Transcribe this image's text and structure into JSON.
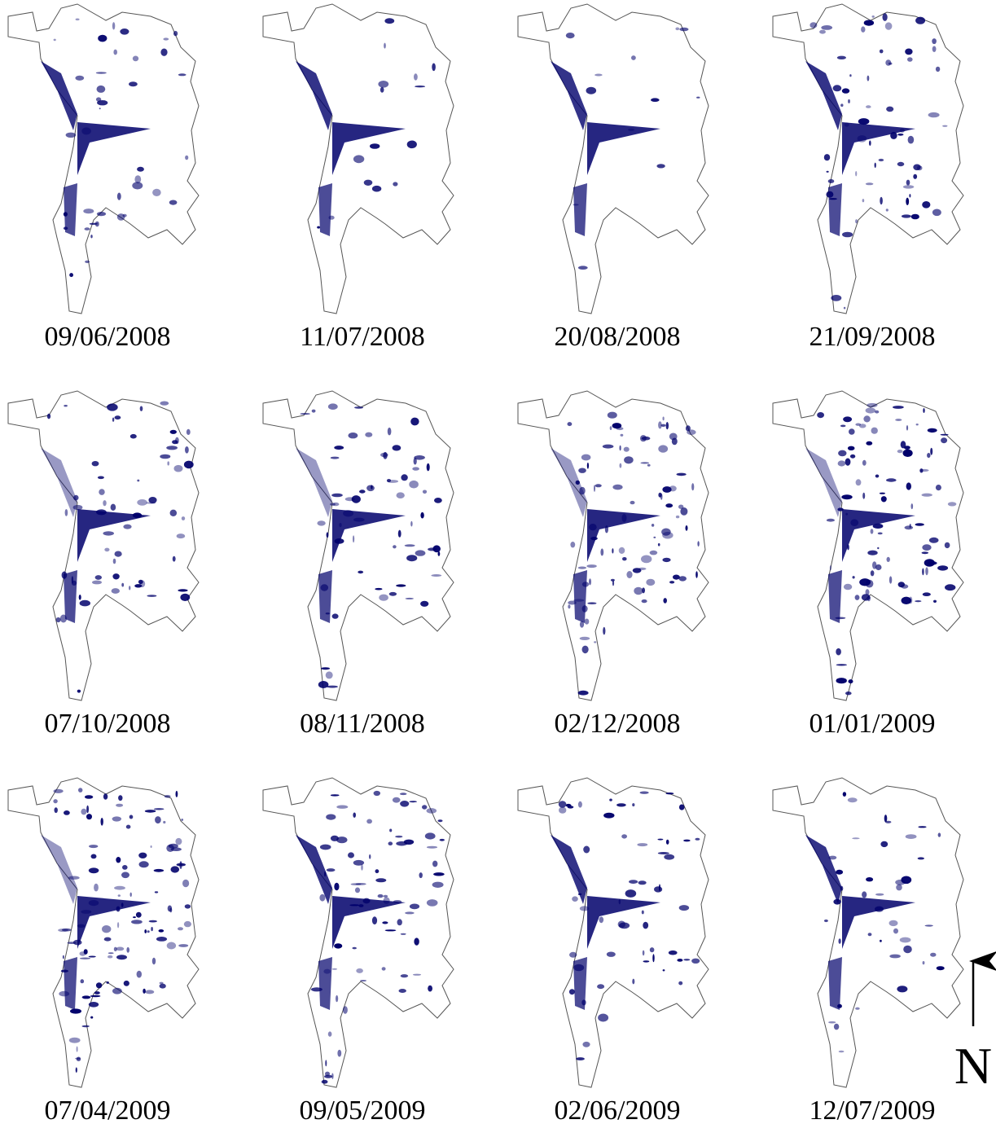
{
  "panels": [
    {
      "label": "09/06/2008"
    },
    {
      "label": "11/07/2008"
    },
    {
      "label": "20/08/2008"
    },
    {
      "label": "21/09/2008"
    },
    {
      "label": "07/10/2008"
    },
    {
      "label": "08/11/2008"
    },
    {
      "label": "02/12/2008"
    },
    {
      "label": "01/01/2009"
    },
    {
      "label": "07/04/2009"
    },
    {
      "label": "09/05/2009"
    },
    {
      "label": "02/06/2009"
    },
    {
      "label": "12/07/2009"
    }
  ],
  "north_label": "N"
}
